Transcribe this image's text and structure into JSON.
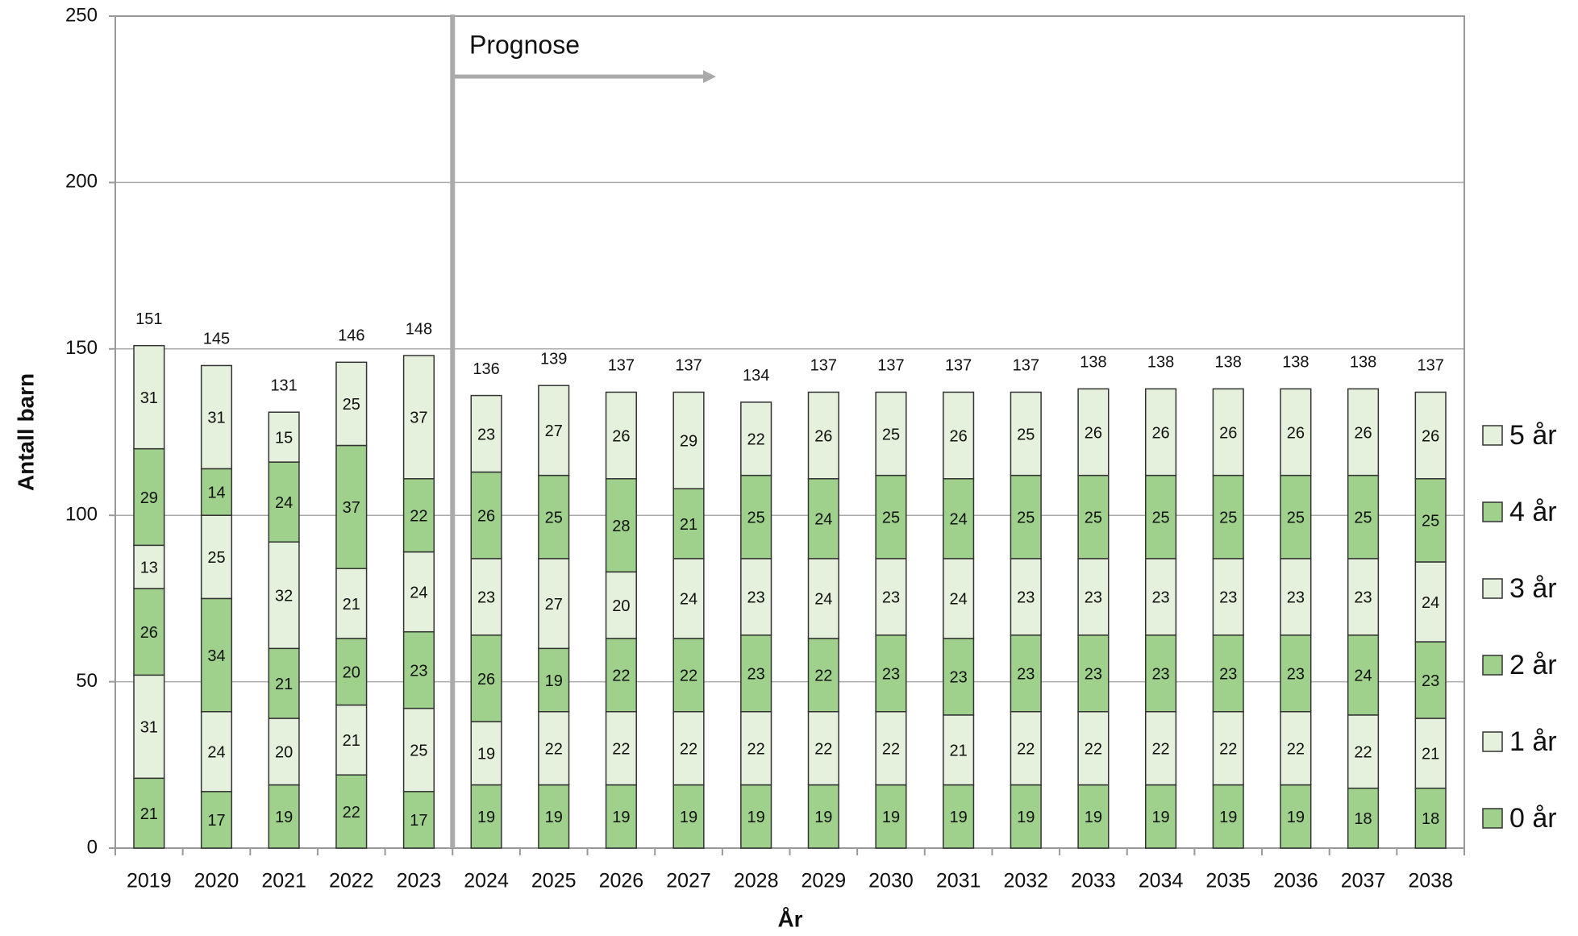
{
  "chart_data": {
    "type": "stacked_bar",
    "annotation": "Prognose",
    "x_label": "År",
    "y_label": "Antall barn",
    "categories": [
      "2019",
      "2020",
      "2021",
      "2022",
      "2023",
      "2024",
      "2025",
      "2026",
      "2027",
      "2028",
      "2029",
      "2030",
      "2031",
      "2032",
      "2033",
      "2034",
      "2035",
      "2036",
      "2037",
      "2038"
    ],
    "series": [
      {
        "name": "0 år",
        "color": "#9fd18c",
        "values": [
          21,
          17,
          19,
          22,
          17,
          19,
          19,
          19,
          19,
          19,
          19,
          19,
          19,
          19,
          19,
          19,
          19,
          19,
          18,
          18
        ]
      },
      {
        "name": "1 år",
        "color": "#e5f1dc",
        "values": [
          31,
          24,
          20,
          21,
          25,
          19,
          22,
          22,
          22,
          22,
          22,
          22,
          21,
          22,
          22,
          22,
          22,
          22,
          22,
          21
        ]
      },
      {
        "name": "2 år",
        "color": "#9fd18c",
        "values": [
          26,
          34,
          21,
          20,
          23,
          26,
          19,
          22,
          22,
          23,
          22,
          23,
          23,
          23,
          23,
          23,
          23,
          23,
          24,
          23
        ]
      },
      {
        "name": "3 år",
        "color": "#e5f1dc",
        "values": [
          13,
          25,
          32,
          21,
          24,
          23,
          27,
          20,
          24,
          23,
          24,
          23,
          24,
          23,
          23,
          23,
          23,
          23,
          23,
          24
        ]
      },
      {
        "name": "4 år",
        "color": "#9fd18c",
        "values": [
          29,
          14,
          24,
          37,
          22,
          26,
          25,
          28,
          21,
          25,
          24,
          25,
          24,
          25,
          25,
          25,
          25,
          25,
          25,
          25
        ]
      },
      {
        "name": "5 år",
        "color": "#e5f1dc",
        "values": [
          31,
          31,
          15,
          25,
          37,
          23,
          27,
          26,
          29,
          22,
          26,
          25,
          26,
          25,
          26,
          26,
          26,
          26,
          26,
          26
        ]
      }
    ],
    "totals": [
      151,
      145,
      131,
      146,
      148,
      136,
      139,
      137,
      137,
      134,
      137,
      137,
      137,
      137,
      138,
      138,
      138,
      138,
      138,
      137
    ],
    "ylim": [
      0,
      250
    ],
    "yticks": [
      0,
      50,
      100,
      150,
      200,
      250
    ],
    "grid": true,
    "legend": "right"
  }
}
